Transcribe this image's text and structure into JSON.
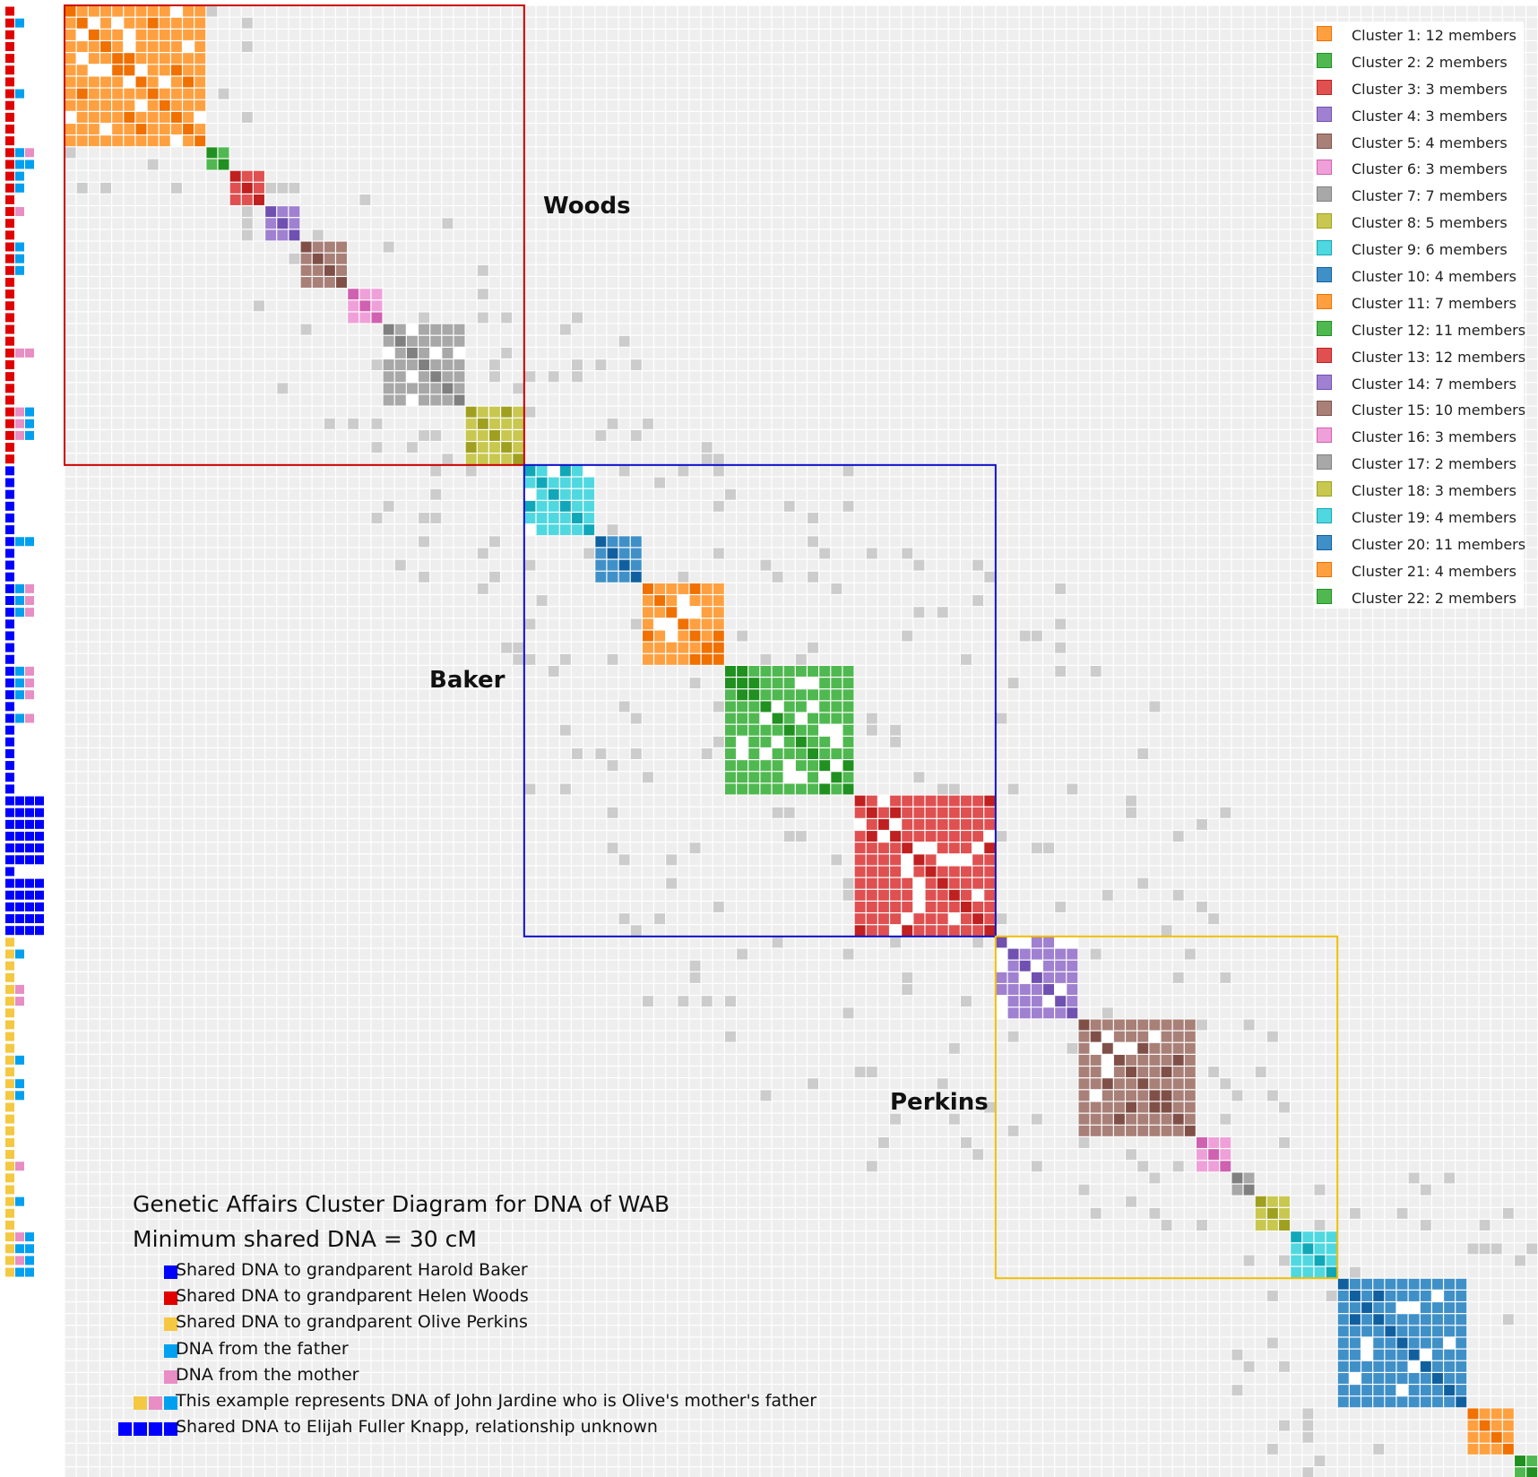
{
  "colors": {
    "baker": "#0000ff",
    "woods": "#e00000",
    "perkins": "#f5c842",
    "father": "#00a0f0",
    "mother": "#e88ec4",
    "background_cell": "#eeeeee",
    "cross_cell": "#cccccc"
  },
  "surnames": [
    {
      "label": "Woods",
      "color": "#cc0000"
    },
    {
      "label": "Baker",
      "color": "#1010cc"
    },
    {
      "label": "Perkins",
      "color": "#f0c000"
    }
  ],
  "caption": {
    "title": "Genetic Affairs Cluster Diagram for DNA of WAB",
    "subtitle": "Minimum shared DNA = 30 cM",
    "keys": [
      {
        "swatches": [
          "baker"
        ],
        "text": "Shared DNA to grandparent Harold Baker"
      },
      {
        "swatches": [
          "woods"
        ],
        "text": "Shared DNA to grandparent Helen Woods"
      },
      {
        "swatches": [
          "perkins"
        ],
        "text": "Shared DNA to grandparent Olive Perkins"
      },
      {
        "swatches": [
          "father"
        ],
        "text": "DNA from the father"
      },
      {
        "swatches": [
          "mother"
        ],
        "text": "DNA from the mother"
      },
      {
        "swatches": [
          "perkins",
          "mother",
          "father"
        ],
        "text": "This example represents DNA of John Jardine who is Olive's mother's father"
      },
      {
        "swatches": [
          "baker",
          "baker",
          "baker",
          "baker"
        ],
        "text": "Shared DNA to Elijah Fuller Knapp, relationship unknown"
      }
    ]
  },
  "clusters": [
    {
      "label": "Cluster 1: 12 members",
      "size": 12,
      "color": "#ffa040",
      "dark": "#f07000"
    },
    {
      "label": "Cluster 2: 2 members",
      "size": 2,
      "color": "#50b850",
      "dark": "#209020"
    },
    {
      "label": "Cluster 3: 3 members",
      "size": 3,
      "color": "#e05050",
      "dark": "#c02020"
    },
    {
      "label": "Cluster 4: 3 members",
      "size": 3,
      "color": "#a080d0",
      "dark": "#7050b0"
    },
    {
      "label": "Cluster 5: 4 members",
      "size": 4,
      "color": "#a88078",
      "dark": "#805048"
    },
    {
      "label": "Cluster 6: 3 members",
      "size": 3,
      "color": "#f0a0d8",
      "dark": "#d060b0"
    },
    {
      "label": "Cluster 7: 7 members",
      "size": 7,
      "color": "#a8a8a8",
      "dark": "#808080"
    },
    {
      "label": "Cluster 8: 5 members",
      "size": 5,
      "color": "#c8c850",
      "dark": "#a0a020"
    },
    {
      "label": "Cluster 9: 6 members",
      "size": 6,
      "color": "#50d8e0",
      "dark": "#10a8b8"
    },
    {
      "label": "Cluster 10: 4 members",
      "size": 4,
      "color": "#4090c8",
      "dark": "#1060a0"
    },
    {
      "label": "Cluster 11: 7 members",
      "size": 7,
      "color": "#ffa040",
      "dark": "#f07000"
    },
    {
      "label": "Cluster 12: 11 members",
      "size": 11,
      "color": "#50b850",
      "dark": "#209020"
    },
    {
      "label": "Cluster 13: 12 members",
      "size": 12,
      "color": "#e05050",
      "dark": "#c02020"
    },
    {
      "label": "Cluster 14: 7 members",
      "size": 7,
      "color": "#a080d0",
      "dark": "#7050b0"
    },
    {
      "label": "Cluster 15: 10 members",
      "size": 10,
      "color": "#a88078",
      "dark": "#805048"
    },
    {
      "label": "Cluster 16: 3 members",
      "size": 3,
      "color": "#f0a0d8",
      "dark": "#d060b0"
    },
    {
      "label": "Cluster 17: 2 members",
      "size": 2,
      "color": "#a8a8a8",
      "dark": "#808080"
    },
    {
      "label": "Cluster 18: 3 members",
      "size": 3,
      "color": "#c8c850",
      "dark": "#a0a020"
    },
    {
      "label": "Cluster 19: 4 members",
      "size": 4,
      "color": "#50d8e0",
      "dark": "#10a8b8"
    },
    {
      "label": "Cluster 20: 11 members",
      "size": 11,
      "color": "#4090c8",
      "dark": "#1060a0"
    },
    {
      "label": "Cluster 21: 4 members",
      "size": 4,
      "color": "#ffa040",
      "dark": "#f07000"
    },
    {
      "label": "Cluster 22: 2 members",
      "size": 2,
      "color": "#50b850",
      "dark": "#209020"
    }
  ],
  "groups": [
    {
      "surname": "Woods",
      "from_cluster": 1,
      "to_cluster": 8,
      "color": "#cc0000"
    },
    {
      "surname": "Baker",
      "from_cluster": 9,
      "to_cluster": 13,
      "color": "#1010cc"
    },
    {
      "surname": "Perkins",
      "from_cluster": 14,
      "to_cluster": 19,
      "color": "#f0c000"
    }
  ],
  "member_tags": [
    [
      "woods"
    ],
    [
      "woods",
      "father"
    ],
    [
      "woods"
    ],
    [
      "woods"
    ],
    [
      "woods"
    ],
    [
      "woods"
    ],
    [
      "woods"
    ],
    [
      "woods",
      "father"
    ],
    [
      "woods"
    ],
    [
      "woods"
    ],
    [
      "woods"
    ],
    [
      "woods"
    ],
    [
      "woods",
      "father",
      "mother"
    ],
    [
      "woods",
      "father",
      "father"
    ],
    [
      "woods",
      "father"
    ],
    [
      "woods",
      "father"
    ],
    [
      "woods"
    ],
    [
      "woods",
      "mother"
    ],
    [
      "woods"
    ],
    [
      "woods"
    ],
    [
      "woods",
      "father"
    ],
    [
      "woods",
      "father"
    ],
    [
      "woods",
      "father"
    ],
    [
      "woods"
    ],
    [
      "woods"
    ],
    [
      "woods"
    ],
    [
      "woods"
    ],
    [
      "woods"
    ],
    [
      "woods"
    ],
    [
      "woods",
      "mother",
      "mother"
    ],
    [
      "woods"
    ],
    [
      "woods"
    ],
    [
      "woods"
    ],
    [
      "woods"
    ],
    [
      "woods",
      "mother",
      "father"
    ],
    [
      "woods",
      "mother",
      "father"
    ],
    [
      "woods",
      "mother",
      "father"
    ],
    [
      "woods"
    ],
    [
      "woods"
    ],
    [
      "baker"
    ],
    [
      "baker"
    ],
    [
      "baker"
    ],
    [
      "baker"
    ],
    [
      "baker"
    ],
    [
      "baker"
    ],
    [
      "baker",
      "father",
      "father"
    ],
    [
      "baker"
    ],
    [
      "baker"
    ],
    [
      "baker"
    ],
    [
      "baker",
      "father",
      "mother"
    ],
    [
      "baker",
      "father",
      "mother"
    ],
    [
      "baker",
      "father",
      "mother"
    ],
    [
      "baker"
    ],
    [
      "baker"
    ],
    [
      "baker"
    ],
    [
      "baker"
    ],
    [
      "baker",
      "father",
      "mother"
    ],
    [
      "baker",
      "father",
      "mother"
    ],
    [
      "baker",
      "father",
      "mother"
    ],
    [
      "baker"
    ],
    [
      "baker",
      "father",
      "mother"
    ],
    [
      "baker"
    ],
    [
      "baker"
    ],
    [
      "baker"
    ],
    [
      "baker"
    ],
    [
      "baker"
    ],
    [
      "baker"
    ],
    [
      "baker",
      "baker",
      "baker",
      "baker"
    ],
    [
      "baker",
      "baker",
      "baker",
      "baker"
    ],
    [
      "baker",
      "baker",
      "baker",
      "baker"
    ],
    [
      "baker",
      "baker",
      "baker",
      "baker"
    ],
    [
      "baker",
      "baker",
      "baker",
      "baker"
    ],
    [
      "baker",
      "baker",
      "baker",
      "baker"
    ],
    [
      "baker"
    ],
    [
      "baker",
      "baker",
      "baker",
      "baker"
    ],
    [
      "baker",
      "baker",
      "baker",
      "baker"
    ],
    [
      "baker",
      "baker",
      "baker",
      "baker"
    ],
    [
      "baker",
      "baker",
      "baker",
      "baker"
    ],
    [
      "baker",
      "baker",
      "baker",
      "baker"
    ],
    [
      "perkins"
    ],
    [
      "perkins",
      "father"
    ],
    [
      "perkins"
    ],
    [
      "perkins"
    ],
    [
      "perkins",
      "mother"
    ],
    [
      "perkins",
      "mother"
    ],
    [
      "perkins"
    ],
    [
      "perkins"
    ],
    [
      "perkins"
    ],
    [
      "perkins"
    ],
    [
      "perkins",
      "father"
    ],
    [
      "perkins"
    ],
    [
      "perkins",
      "father"
    ],
    [
      "perkins",
      "father"
    ],
    [
      "perkins"
    ],
    [
      "perkins"
    ],
    [
      "perkins"
    ],
    [
      "perkins"
    ],
    [
      "perkins"
    ],
    [
      "perkins",
      "mother"
    ],
    [
      "perkins"
    ],
    [
      "perkins"
    ],
    [
      "perkins",
      "father"
    ],
    [
      "perkins"
    ],
    [
      "perkins"
    ],
    [
      "perkins",
      "mother",
      "father"
    ],
    [
      "perkins",
      "father",
      "father"
    ],
    [
      "perkins",
      "mother",
      "father"
    ],
    [
      "perkins",
      "father",
      "father"
    ]
  ]
}
